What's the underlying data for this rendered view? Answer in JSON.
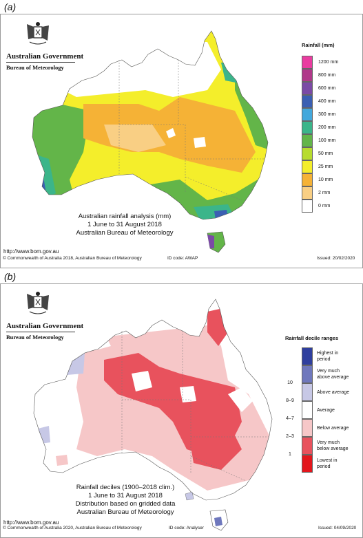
{
  "panel_a": {
    "label": "(a)",
    "logo": {
      "gov_name": "Australian Government",
      "bureau": "Bureau of Meteorology"
    },
    "legend": {
      "title": "Rainfall (mm)",
      "items": [
        {
          "label": "1200 mm",
          "color": "#e93ca0"
        },
        {
          "label": "800 mm",
          "color": "#b0388a"
        },
        {
          "label": "600 mm",
          "color": "#7b4aa6"
        },
        {
          "label": "400 mm",
          "color": "#3b5fb3"
        },
        {
          "label": "300 mm",
          "color": "#43a8dc"
        },
        {
          "label": "200 mm",
          "color": "#3bb58a"
        },
        {
          "label": "100 mm",
          "color": "#63b549"
        },
        {
          "label": "50 mm",
          "color": "#b7dc2e"
        },
        {
          "label": "25 mm",
          "color": "#f4ee2b"
        },
        {
          "label": "10 mm",
          "color": "#f5b236"
        },
        {
          "label": "2 mm",
          "color": "#f9cf84"
        },
        {
          "label": "0 mm",
          "color": "#ffffff"
        }
      ]
    },
    "caption": [
      "Australian rainfall analysis (mm)",
      "1 June to 31 August 2018",
      "Australian Bureau of Meteorology"
    ],
    "url": "http://www.bom.gov.au",
    "footer": {
      "copyright": "© Commonwealth of Australia 2018, Australian Bureau of Meteorology",
      "id_code": "ID code: AWAP",
      "issued": "Issued: 20/02/2020"
    }
  },
  "panel_b": {
    "label": "(b)",
    "logo": {
      "gov_name": "Australian Government",
      "bureau": "Bureau of Meteorology"
    },
    "legend": {
      "title": "Rainfall decile ranges",
      "items": [
        {
          "label": "Highest in\nperiod",
          "decile": "",
          "color": "#2f3f9e"
        },
        {
          "label": "Very much\nabove average",
          "decile": "10",
          "color": "#6f78bd"
        },
        {
          "label": "Above average",
          "decile": "8–9",
          "color": "#c7c8e6"
        },
        {
          "label": "Average",
          "decile": "4–7",
          "color": "#ffffff"
        },
        {
          "label": "Below average",
          "decile": "2–3",
          "color": "#f6c7c8"
        },
        {
          "label": "Very much\nbelow average",
          "decile": "1",
          "color": "#e8525d"
        },
        {
          "label": "Lowest in\nperiod",
          "decile": "",
          "color": "#e3161c"
        }
      ]
    },
    "caption": [
      "Rainfall deciles (1900–2018 clim.)",
      "1 June to 31 August 2018",
      "Distribution based on gridded data",
      "Australian Bureau of Meteorology"
    ],
    "url": "http://www.bom.gov.au",
    "footer": {
      "copyright": "© Commonwealth of Australia 2020, Australian Bureau of Meteorology",
      "id_code": "ID code: Analyser",
      "issued": "Issued: 04/09/2020"
    }
  }
}
